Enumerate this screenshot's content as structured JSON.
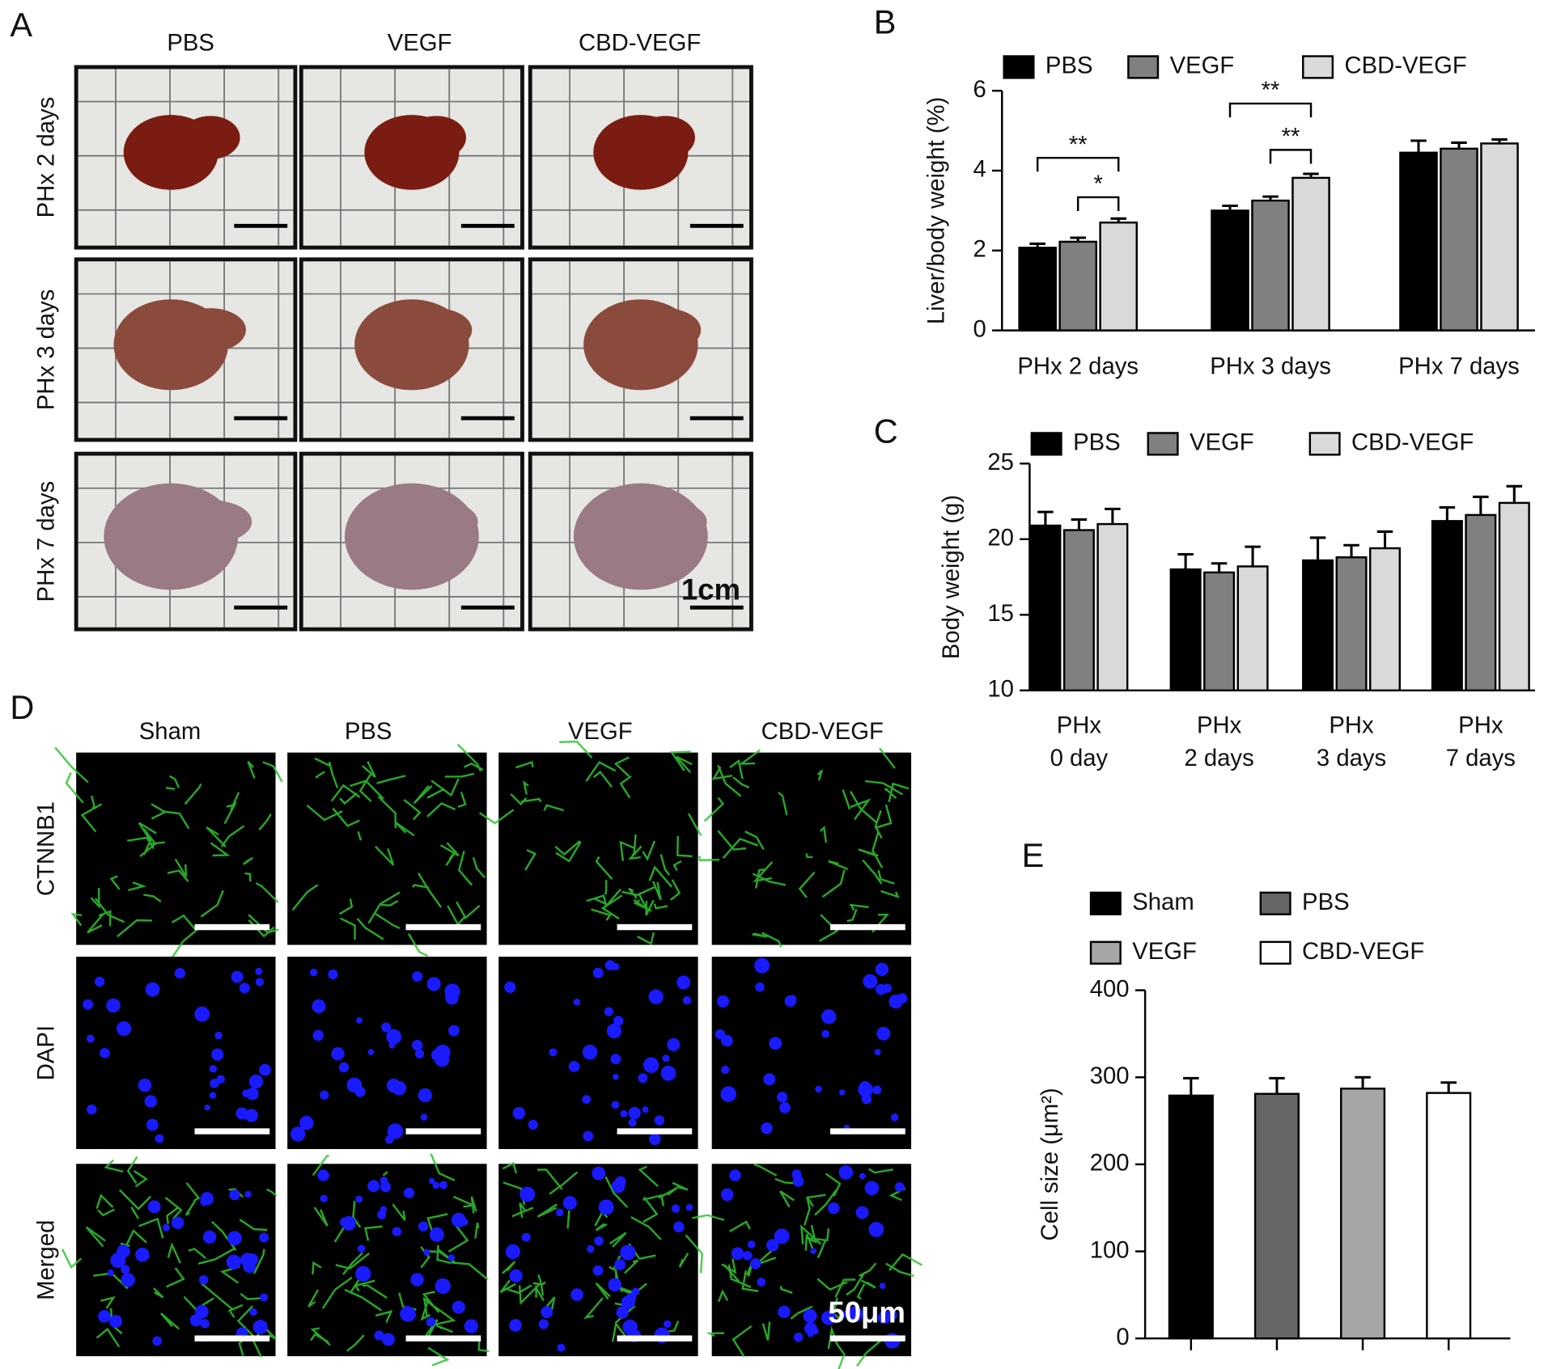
{
  "panel_A": {
    "letter": "A",
    "columns": [
      "PBS",
      "VEGF",
      "CBD-VEGF"
    ],
    "rows": [
      "PHx 2 days",
      "PHx 3 days",
      "PHx 7 days"
    ],
    "scale_label": "1cm"
  },
  "panel_D": {
    "letter": "D",
    "columns": [
      "Sham",
      "PBS",
      "VEGF",
      "CBD-VEGF"
    ],
    "rows": [
      "CTNNB1",
      "DAPI",
      "Merged"
    ],
    "scale_label": "50μm"
  },
  "chart_data": [
    {
      "panel": "B",
      "type": "bar",
      "ylabel": "Liver/body weight (%)",
      "categories": [
        "PHx 2 days",
        "PHx 3 days",
        "PHx 7 days"
      ],
      "series": [
        {
          "name": "PBS",
          "color": "#000000",
          "values": [
            2.07,
            3.0,
            4.45
          ],
          "errors": [
            0.1,
            0.12,
            0.3
          ]
        },
        {
          "name": "VEGF",
          "color": "#808080",
          "values": [
            2.22,
            3.25,
            4.55
          ],
          "errors": [
            0.1,
            0.1,
            0.15
          ]
        },
        {
          "name": "CBD-VEGF",
          "color": "#d9d9d9",
          "values": [
            2.7,
            3.82,
            4.68
          ],
          "errors": [
            0.1,
            0.1,
            0.1
          ]
        }
      ],
      "ylim": [
        0,
        6
      ],
      "yticks": [
        0,
        2,
        4,
        6
      ],
      "legend": "top",
      "annotations": [
        "**",
        "*",
        "**",
        "**"
      ]
    },
    {
      "panel": "C",
      "type": "bar",
      "ylabel": "Body weight (g)",
      "categories": [
        [
          "PHx",
          "0 day"
        ],
        [
          "PHx",
          "2 days"
        ],
        [
          "PHx",
          "3 days"
        ],
        [
          "PHx",
          "7 days"
        ]
      ],
      "series": [
        {
          "name": "PBS",
          "color": "#000000",
          "values": [
            20.9,
            18.0,
            18.6,
            21.2
          ],
          "errors": [
            0.9,
            1.0,
            1.5,
            0.9
          ]
        },
        {
          "name": "VEGF",
          "color": "#808080",
          "values": [
            20.6,
            17.8,
            18.8,
            21.6
          ],
          "errors": [
            0.7,
            0.6,
            0.8,
            1.2
          ]
        },
        {
          "name": "CBD-VEGF",
          "color": "#d9d9d9",
          "values": [
            21.0,
            18.2,
            19.4,
            22.4
          ],
          "errors": [
            1.0,
            1.3,
            1.1,
            1.1
          ]
        }
      ],
      "ylim": [
        10,
        25
      ],
      "yticks": [
        10,
        15,
        20,
        25
      ],
      "legend": "top"
    },
    {
      "panel": "E",
      "type": "bar",
      "ylabel": "Cell size (μm²)",
      "categories": [
        null
      ],
      "series": [
        {
          "name": "Sham",
          "color": "#000000",
          "values": [
            279
          ],
          "errors": [
            20
          ]
        },
        {
          "name": "PBS",
          "color": "#666666",
          "values": [
            281
          ],
          "errors": [
            18
          ]
        },
        {
          "name": "VEGF",
          "color": "#a6a6a6",
          "values": [
            287
          ],
          "errors": [
            13
          ]
        },
        {
          "name": "CBD-VEGF",
          "color": "#ffffff",
          "values": [
            282
          ],
          "errors": [
            12
          ]
        }
      ],
      "ylim": [
        0,
        400
      ],
      "yticks": [
        0,
        100,
        200,
        300,
        400
      ],
      "legend": "top"
    }
  ]
}
